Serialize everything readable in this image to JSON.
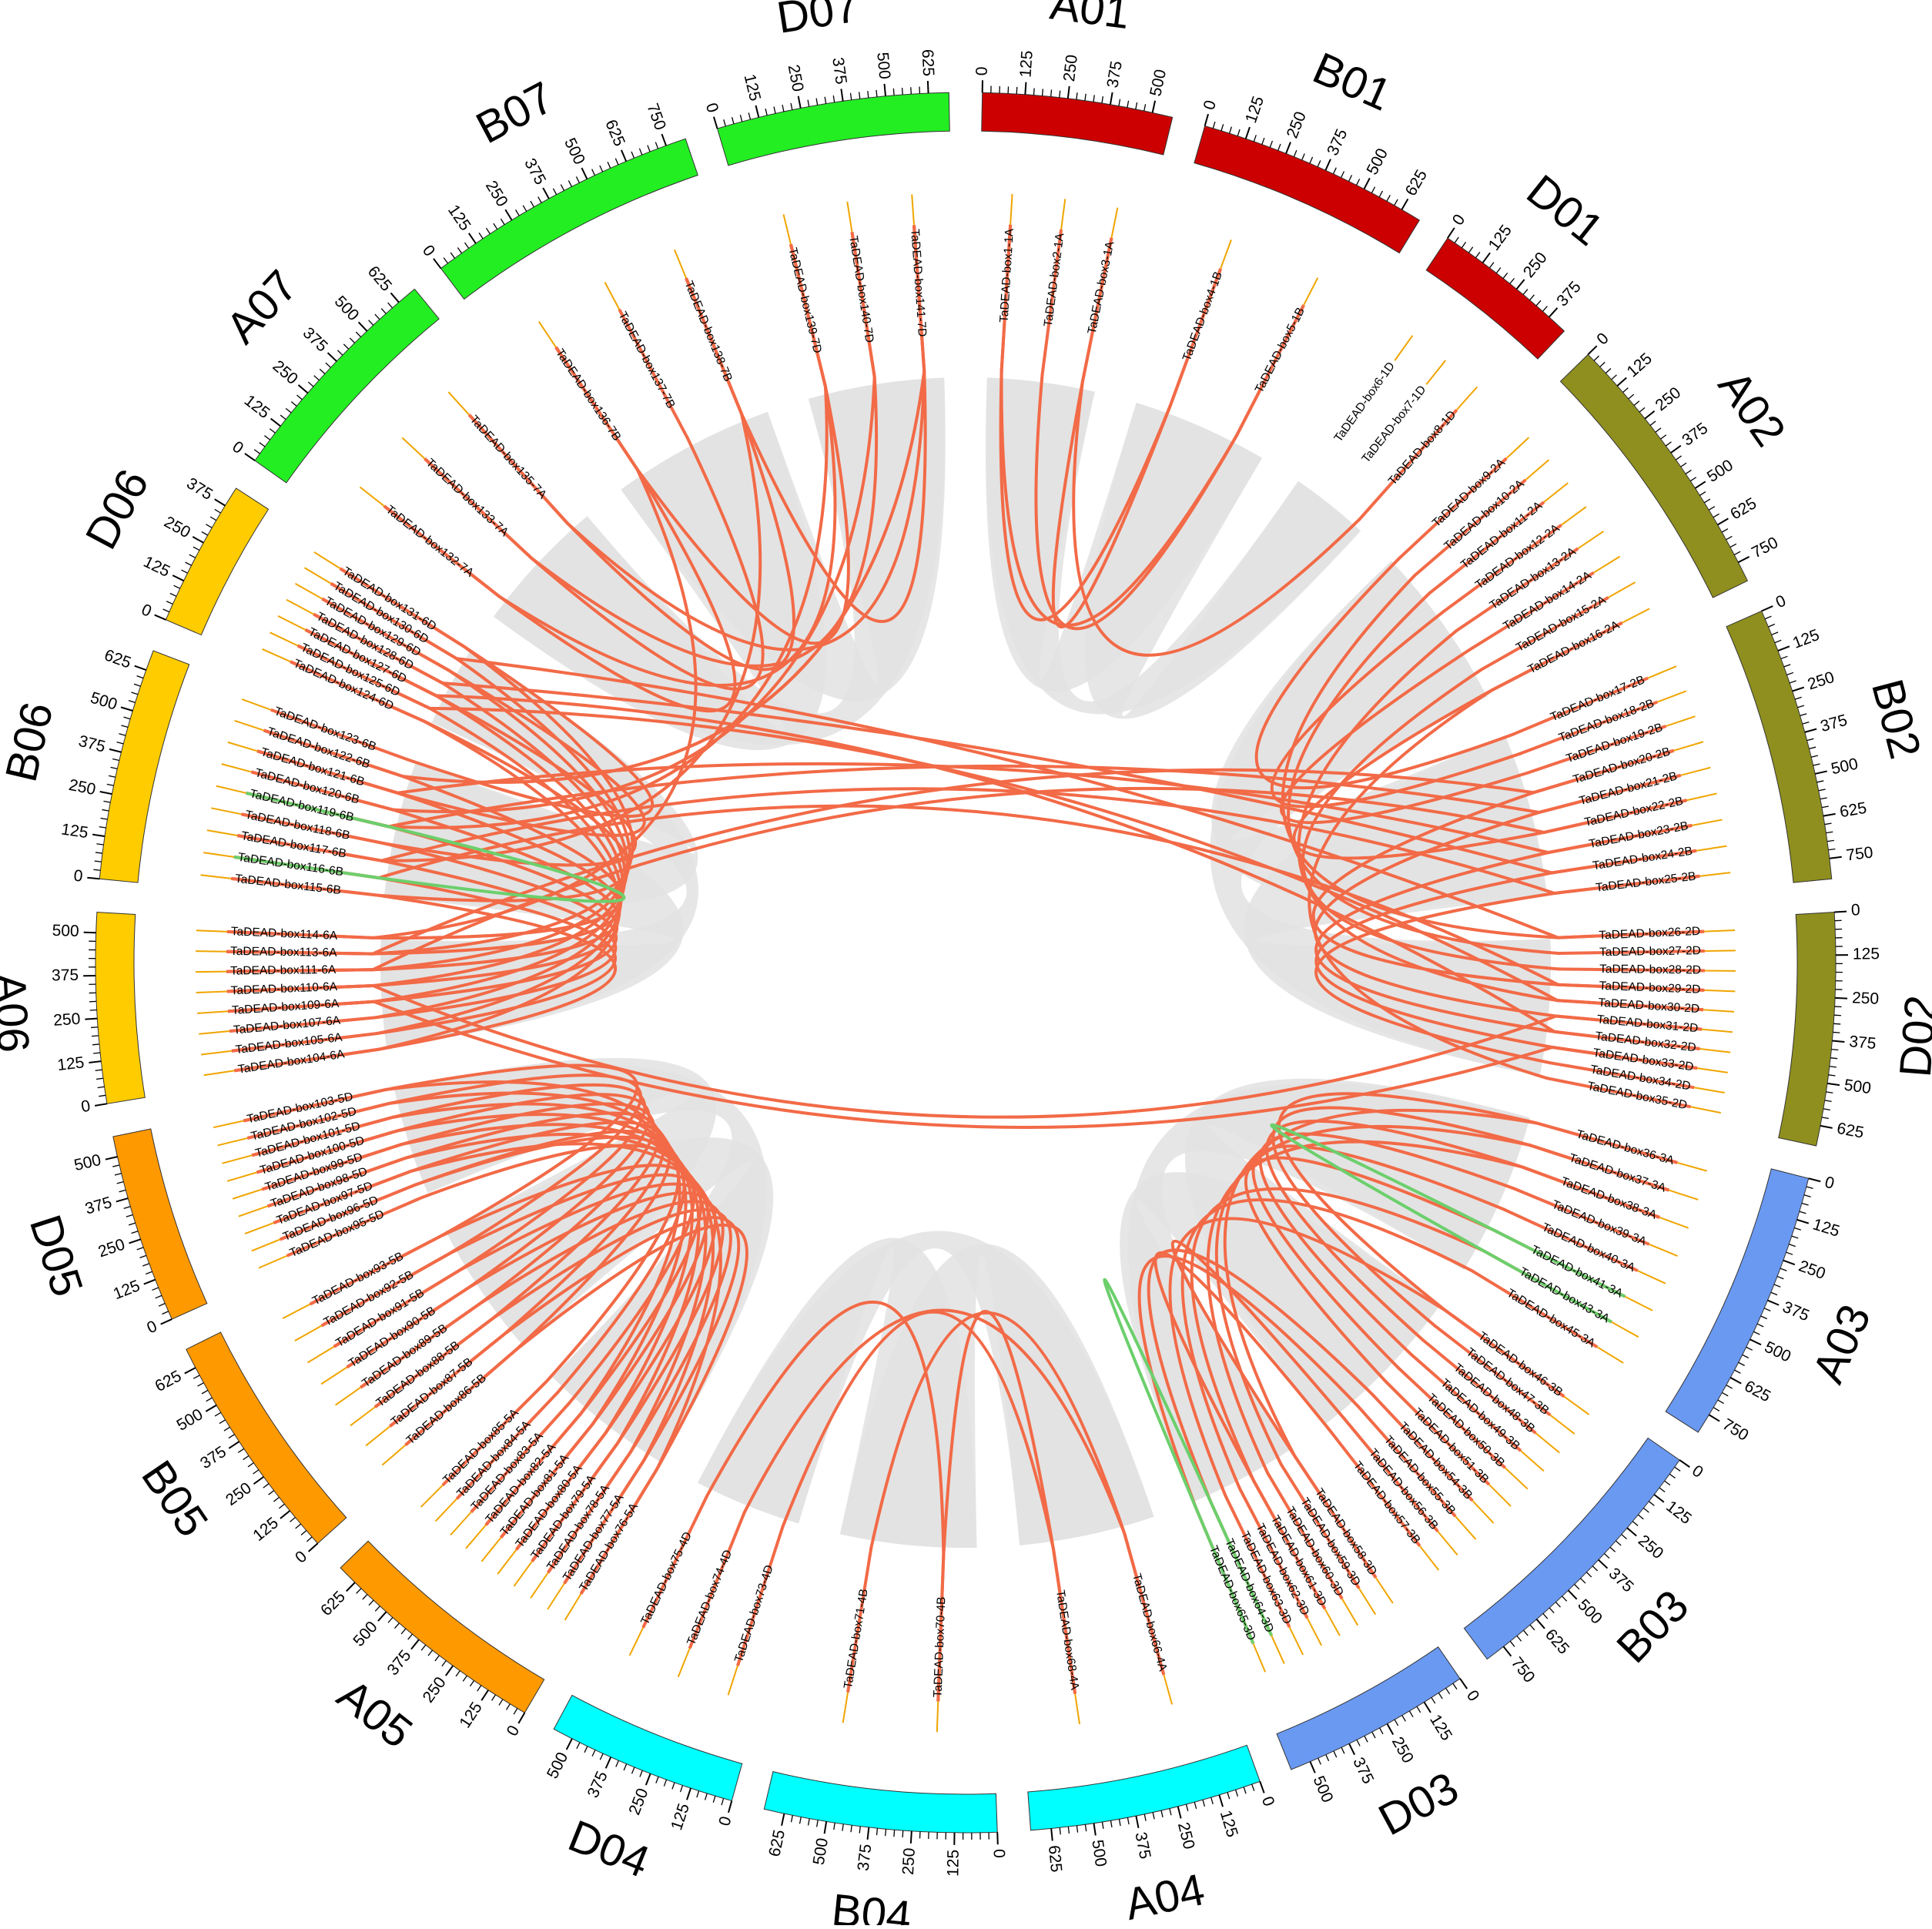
{
  "colors": {
    "red": "#cc0000",
    "olive": "#8f8f1f",
    "blue": "#6a99f2",
    "cyan": "#00ffff",
    "orange": "#ff9900",
    "gold": "#ffcc00",
    "green": "#22ee22",
    "link_segmental": "#f26a47",
    "link_tandem": "#6ccf6c",
    "band": "#e2e2e2",
    "gene_tick": "#f0a500"
  },
  "chromosomes": [
    {
      "name": "A01",
      "color": "red",
      "ticks": [
        "0",
        "125",
        "250",
        "375",
        "500"
      ]
    },
    {
      "name": "B01",
      "color": "red",
      "ticks": [
        "0",
        "125",
        "250",
        "375",
        "500",
        "625"
      ]
    },
    {
      "name": "D01",
      "color": "red",
      "ticks": [
        "0",
        "125",
        "250",
        "375"
      ]
    },
    {
      "name": "A02",
      "color": "olive",
      "ticks": [
        "0",
        "125",
        "250",
        "375",
        "500",
        "625",
        "750"
      ]
    },
    {
      "name": "B02",
      "color": "olive",
      "ticks": [
        "0",
        "125",
        "250",
        "375",
        "500",
        "625",
        "750"
      ]
    },
    {
      "name": "D02",
      "color": "olive",
      "ticks": [
        "0",
        "125",
        "250",
        "375",
        "500",
        "625"
      ]
    },
    {
      "name": "A03",
      "color": "blue",
      "ticks": [
        "0",
        "125",
        "250",
        "375",
        "500",
        "625",
        "750"
      ]
    },
    {
      "name": "B03",
      "color": "blue",
      "ticks": [
        "0",
        "125",
        "250",
        "375",
        "500",
        "625",
        "750"
      ]
    },
    {
      "name": "D03",
      "color": "blue",
      "ticks": [
        "0",
        "125",
        "250",
        "375",
        "500"
      ]
    },
    {
      "name": "A04",
      "color": "cyan",
      "ticks": [
        "0",
        "125",
        "250",
        "375",
        "500",
        "625"
      ]
    },
    {
      "name": "B04",
      "color": "cyan",
      "ticks": [
        "0",
        "125",
        "250",
        "375",
        "500",
        "625"
      ]
    },
    {
      "name": "D04",
      "color": "cyan",
      "ticks": [
        "0",
        "125",
        "250",
        "375",
        "500"
      ]
    },
    {
      "name": "A05",
      "color": "orange",
      "ticks": [
        "0",
        "125",
        "250",
        "375",
        "500",
        "625"
      ]
    },
    {
      "name": "B05",
      "color": "orange",
      "ticks": [
        "0",
        "125",
        "250",
        "375",
        "500",
        "625"
      ]
    },
    {
      "name": "D05",
      "color": "orange",
      "ticks": [
        "0",
        "125",
        "250",
        "375",
        "500"
      ]
    },
    {
      "name": "A06",
      "color": "gold",
      "ticks": [
        "0",
        "125",
        "250",
        "375",
        "500"
      ]
    },
    {
      "name": "B06",
      "color": "gold",
      "ticks": [
        "0",
        "125",
        "250",
        "375",
        "500",
        "625"
      ]
    },
    {
      "name": "D06",
      "color": "gold",
      "ticks": [
        "0",
        "125",
        "250",
        "375"
      ]
    },
    {
      "name": "A07",
      "color": "green",
      "ticks": [
        "0",
        "125",
        "250",
        "375",
        "500",
        "625"
      ]
    },
    {
      "name": "B07",
      "color": "green",
      "ticks": [
        "0",
        "125",
        "250",
        "375",
        "500",
        "625",
        "750"
      ]
    },
    {
      "name": "D07",
      "color": "green",
      "ticks": [
        "0",
        "125",
        "250",
        "375",
        "500",
        "625"
      ]
    }
  ],
  "genes": [
    "TaDEAD-box1-1A",
    "TaDEAD-box2-1A",
    "TaDEAD-box3-1A",
    "TaDEAD-box4-1B",
    "TaDEAD-box5-1B",
    "TaDEAD-box6-1D",
    "TaDEAD-box7-1D",
    "TaDEAD-box8-1D",
    "TaDEAD-box9-2A",
    "TaDEAD-box10-2A",
    "TaDEAD-box11-2A",
    "TaDEAD-box12-2A",
    "TaDEAD-box13-2A",
    "TaDEAD-box14-2A",
    "TaDEAD-box15-2A",
    "TaDEAD-box16-2A",
    "TaDEAD-box17-2B",
    "TaDEAD-box18-2B",
    "TaDEAD-box19-2B",
    "TaDEAD-box20-2B",
    "TaDEAD-box21-2B",
    "TaDEAD-box22-2B",
    "TaDEAD-box23-2B",
    "TaDEAD-box24-2B",
    "TaDEAD-box25-2B",
    "TaDEAD-box26-2D",
    "TaDEAD-box27-2D",
    "TaDEAD-box28-2D",
    "TaDEAD-box29-2D",
    "TaDEAD-box30-2D",
    "TaDEAD-box31-2D",
    "TaDEAD-box32-2D",
    "TaDEAD-box33-2D",
    "TaDEAD-box34-2D",
    "TaDEAD-box35-2D",
    "TaDEAD-box36-3A",
    "TaDEAD-box37-3A",
    "TaDEAD-box38-3A",
    "TaDEAD-box39-3A",
    "TaDEAD-box40-3A",
    "TaDEAD-box41-3A",
    "TaDEAD-box43-3A",
    "TaDEAD-box45-3A",
    "TaDEAD-box46-3B",
    "TaDEAD-box47-3B",
    "TaDEAD-box48-3B",
    "TaDEAD-box49-3B",
    "TaDEAD-box50-3B",
    "TaDEAD-box51-3B",
    "TaDEAD-box54-3B",
    "TaDEAD-box55-3B",
    "TaDEAD-box56-3B",
    "TaDEAD-box57-3B",
    "TaDEAD-box58-3D",
    "TaDEAD-box59-3D",
    "TaDEAD-box60-3D",
    "TaDEAD-box61-3D",
    "TaDEAD-box62-3D",
    "TaDEAD-box63-3D",
    "TaDEAD-box64-3D",
    "TaDEAD-box65-3D",
    "TaDEAD-box66-4A",
    "TaDEAD-box68-4A",
    "TaDEAD-box70-4B",
    "TaDEAD-box71-4B",
    "TaDEAD-box73-4D",
    "TaDEAD-box74-4D",
    "TaDEAD-box75-4D",
    "TaDEAD-box76-5A",
    "TaDEAD-box77-5A",
    "TaDEAD-box78-5A",
    "TaDEAD-box79-5A",
    "TaDEAD-box80-5A",
    "TaDEAD-box81-5A",
    "TaDEAD-box82-5A",
    "TaDEAD-box83-5A",
    "TaDEAD-box84-5A",
    "TaDEAD-box85-5A",
    "TaDEAD-box86-5B",
    "TaDEAD-box87-5B",
    "TaDEAD-box88-5B",
    "TaDEAD-box89-5B",
    "TaDEAD-box90-5B",
    "TaDEAD-box91-5B",
    "TaDEAD-box92-5B",
    "TaDEAD-box93-5B",
    "TaDEAD-box95-5D",
    "TaDEAD-box96-5D",
    "TaDEAD-box97-5D",
    "TaDEAD-box98-5D",
    "TaDEAD-box99-5D",
    "TaDEAD-box100-5D",
    "TaDEAD-box101-5D",
    "TaDEAD-box102-5D",
    "TaDEAD-box103-5D",
    "TaDEAD-box104-6A",
    "TaDEAD-box105-6A",
    "TaDEAD-box107-6A",
    "TaDEAD-box109-6A",
    "TaDEAD-box110-6A",
    "TaDEAD-box111-6A",
    "TaDEAD-box113-6A",
    "TaDEAD-box114-6A",
    "TaDEAD-box115-6B",
    "TaDEAD-box116-6B",
    "TaDEAD-box117-6B",
    "TaDEAD-box118-6B",
    "TaDEAD-box119-6B",
    "TaDEAD-box120-6B",
    "TaDEAD-box121-6B",
    "TaDEAD-box122-6B",
    "TaDEAD-box123-6B",
    "TaDEAD-box124-6D",
    "TaDEAD-box125-6D",
    "TaDEAD-box127-6D",
    "TaDEAD-box128-6D",
    "TaDEAD-box129-6D",
    "TaDEAD-box130-6D",
    "TaDEAD-box131-6D",
    "TaDEAD-box132-7A",
    "TaDEAD-box133-7A",
    "TaDEAD-box135-7A",
    "TaDEAD-box136-7B",
    "TaDEAD-box137-7B",
    "TaDEAD-box138-7B",
    "TaDEAD-box139-7D",
    "TaDEAD-box140-7D",
    "TaDEAD-box141-7D"
  ],
  "segmental_links": [
    [
      "TaDEAD-box1-1A",
      "TaDEAD-box4-1B"
    ],
    [
      "TaDEAD-box1-1A",
      "TaDEAD-box5-1B"
    ],
    [
      "TaDEAD-box3-1A",
      "TaDEAD-box4-1B"
    ],
    [
      "TaDEAD-box3-1A",
      "TaDEAD-box8-1D"
    ],
    [
      "TaDEAD-box2-1A",
      "TaDEAD-box5-1B"
    ],
    [
      "TaDEAD-box9-2A",
      "TaDEAD-box17-2B"
    ],
    [
      "TaDEAD-box10-2A",
      "TaDEAD-box26-2D"
    ],
    [
      "TaDEAD-box11-2A",
      "TaDEAD-box27-2D"
    ],
    [
      "TaDEAD-box12-2A",
      "TaDEAD-box18-2B"
    ],
    [
      "TaDEAD-box13-2A",
      "TaDEAD-box30-2D"
    ],
    [
      "TaDEAD-box14-2A",
      "TaDEAD-box19-2B"
    ],
    [
      "TaDEAD-box15-2A",
      "TaDEAD-box28-2D"
    ],
    [
      "TaDEAD-box16-2A",
      "TaDEAD-box22-2B"
    ],
    [
      "TaDEAD-box20-2B",
      "TaDEAD-box29-2D"
    ],
    [
      "TaDEAD-box21-2B",
      "TaDEAD-box31-2D"
    ],
    [
      "TaDEAD-box23-2B",
      "TaDEAD-box32-2D"
    ],
    [
      "TaDEAD-box24-2B",
      "TaDEAD-box33-2D"
    ],
    [
      "TaDEAD-box25-2B",
      "TaDEAD-box34-2D"
    ],
    [
      "TaDEAD-box16-2A",
      "TaDEAD-box35-2D"
    ],
    [
      "TaDEAD-box36-3A",
      "TaDEAD-box46-3B"
    ],
    [
      "TaDEAD-box37-3A",
      "TaDEAD-box47-3B"
    ],
    [
      "TaDEAD-box38-3A",
      "TaDEAD-box48-3B"
    ],
    [
      "TaDEAD-box39-3A",
      "TaDEAD-box49-3B"
    ],
    [
      "TaDEAD-box40-3A",
      "TaDEAD-box50-3B"
    ],
    [
      "TaDEAD-box41-3A",
      "TaDEAD-box51-3B"
    ],
    [
      "TaDEAD-box36-3A",
      "TaDEAD-box58-3D"
    ],
    [
      "TaDEAD-box37-3A",
      "TaDEAD-box59-3D"
    ],
    [
      "TaDEAD-box38-3A",
      "TaDEAD-box60-3D"
    ],
    [
      "TaDEAD-box43-3A",
      "TaDEAD-box61-3D"
    ],
    [
      "TaDEAD-box45-3A",
      "TaDEAD-box62-3D"
    ],
    [
      "TaDEAD-box46-3B",
      "TaDEAD-box63-3D"
    ],
    [
      "TaDEAD-box54-3B",
      "TaDEAD-box64-3D"
    ],
    [
      "TaDEAD-box55-3B",
      "TaDEAD-box65-3D"
    ],
    [
      "TaDEAD-box56-3B",
      "TaDEAD-box58-3D"
    ],
    [
      "TaDEAD-box57-3B",
      "TaDEAD-box61-3D"
    ],
    [
      "TaDEAD-box66-4A",
      "TaDEAD-box71-4B"
    ],
    [
      "TaDEAD-box66-4A",
      "TaDEAD-box74-4D"
    ],
    [
      "TaDEAD-box68-4A",
      "TaDEAD-box70-4B"
    ],
    [
      "TaDEAD-box68-4A",
      "TaDEAD-box73-4D"
    ],
    [
      "TaDEAD-box70-4B",
      "TaDEAD-box75-4D"
    ],
    [
      "TaDEAD-box76-5A",
      "TaDEAD-box86-5B"
    ],
    [
      "TaDEAD-box77-5A",
      "TaDEAD-box87-5B"
    ],
    [
      "TaDEAD-box78-5A",
      "TaDEAD-box88-5B"
    ],
    [
      "TaDEAD-box79-5A",
      "TaDEAD-box89-5B"
    ],
    [
      "TaDEAD-box80-5A",
      "TaDEAD-box90-5B"
    ],
    [
      "TaDEAD-box81-5A",
      "TaDEAD-box91-5B"
    ],
    [
      "TaDEAD-box82-5A",
      "TaDEAD-box92-5B"
    ],
    [
      "TaDEAD-box83-5A",
      "TaDEAD-box93-5B"
    ],
    [
      "TaDEAD-box84-5A",
      "TaDEAD-box95-5D"
    ],
    [
      "TaDEAD-box85-5A",
      "TaDEAD-box96-5D"
    ],
    [
      "TaDEAD-box76-5A",
      "TaDEAD-box97-5D"
    ],
    [
      "TaDEAD-box77-5A",
      "TaDEAD-box98-5D"
    ],
    [
      "TaDEAD-box78-5A",
      "TaDEAD-box99-5D"
    ],
    [
      "TaDEAD-box79-5A",
      "TaDEAD-box100-5D"
    ],
    [
      "TaDEAD-box80-5A",
      "TaDEAD-box101-5D"
    ],
    [
      "TaDEAD-box81-5A",
      "TaDEAD-box102-5D"
    ],
    [
      "TaDEAD-box82-5A",
      "TaDEAD-box103-5D"
    ],
    [
      "TaDEAD-box86-5B",
      "TaDEAD-box96-5D"
    ],
    [
      "TaDEAD-box87-5B",
      "TaDEAD-box97-5D"
    ],
    [
      "TaDEAD-box88-5B",
      "TaDEAD-box98-5D"
    ],
    [
      "TaDEAD-box89-5B",
      "TaDEAD-box99-5D"
    ],
    [
      "TaDEAD-box90-5B",
      "TaDEAD-box100-5D"
    ],
    [
      "TaDEAD-box91-5B",
      "TaDEAD-box101-5D"
    ],
    [
      "TaDEAD-box92-5B",
      "TaDEAD-box102-5D"
    ],
    [
      "TaDEAD-box93-5B",
      "TaDEAD-box103-5D"
    ],
    [
      "TaDEAD-box104-6A",
      "TaDEAD-box115-6B"
    ],
    [
      "TaDEAD-box105-6A",
      "TaDEAD-box116-6B"
    ],
    [
      "TaDEAD-box107-6A",
      "TaDEAD-box117-6B"
    ],
    [
      "TaDEAD-box109-6A",
      "TaDEAD-box118-6B"
    ],
    [
      "TaDEAD-box110-6A",
      "TaDEAD-box119-6B"
    ],
    [
      "TaDEAD-box111-6A",
      "TaDEAD-box120-6B"
    ],
    [
      "TaDEAD-box113-6A",
      "TaDEAD-box121-6B"
    ],
    [
      "TaDEAD-box114-6A",
      "TaDEAD-box122-6B"
    ],
    [
      "TaDEAD-box104-6A",
      "TaDEAD-box124-6D"
    ],
    [
      "TaDEAD-box105-6A",
      "TaDEAD-box125-6D"
    ],
    [
      "TaDEAD-box107-6A",
      "TaDEAD-box127-6D"
    ],
    [
      "TaDEAD-box109-6A",
      "TaDEAD-box128-6D"
    ],
    [
      "TaDEAD-box110-6A",
      "TaDEAD-box129-6D"
    ],
    [
      "TaDEAD-box111-6A",
      "TaDEAD-box130-6D"
    ],
    [
      "TaDEAD-box113-6A",
      "TaDEAD-box131-6D"
    ],
    [
      "TaDEAD-box115-6B",
      "TaDEAD-box124-6D"
    ],
    [
      "TaDEAD-box118-6B",
      "TaDEAD-box127-6D"
    ],
    [
      "TaDEAD-box121-6B",
      "TaDEAD-box129-6D"
    ],
    [
      "TaDEAD-box123-6B",
      "TaDEAD-box131-6D"
    ],
    [
      "TaDEAD-box132-7A",
      "TaDEAD-box136-7B"
    ],
    [
      "TaDEAD-box133-7A",
      "TaDEAD-box137-7B"
    ],
    [
      "TaDEAD-box135-7A",
      "TaDEAD-box138-7B"
    ],
    [
      "TaDEAD-box132-7A",
      "TaDEAD-box139-7D"
    ],
    [
      "TaDEAD-box133-7A",
      "TaDEAD-box140-7D"
    ],
    [
      "TaDEAD-box135-7A",
      "TaDEAD-box141-7D"
    ],
    [
      "TaDEAD-box136-7B",
      "TaDEAD-box139-7D"
    ],
    [
      "TaDEAD-box138-7B",
      "TaDEAD-box141-7D"
    ],
    [
      "TaDEAD-box119-6B",
      "TaDEAD-box139-7D"
    ],
    [
      "TaDEAD-box120-6B",
      "TaDEAD-box140-7D"
    ],
    [
      "TaDEAD-box122-6B",
      "TaDEAD-box141-7D"
    ],
    [
      "TaDEAD-box117-6B",
      "TaDEAD-box138-7B"
    ],
    [
      "TaDEAD-box114-6A",
      "TaDEAD-box136-7B"
    ],
    [
      "TaDEAD-box128-6D",
      "TaDEAD-box24-2B"
    ],
    [
      "TaDEAD-box127-6D",
      "TaDEAD-box32-2D"
    ],
    [
      "TaDEAD-box121-6B",
      "TaDEAD-box23-2B"
    ],
    [
      "TaDEAD-box119-6B",
      "TaDEAD-box21-2B"
    ],
    [
      "TaDEAD-box117-6B",
      "TaDEAD-box25-2B"
    ],
    [
      "TaDEAD-box116-6B",
      "TaDEAD-box29-2D"
    ],
    [
      "TaDEAD-box111-6A",
      "TaDEAD-box22-2B"
    ],
    [
      "TaDEAD-box110-6A",
      "TaDEAD-box31-2D"
    ],
    [
      "TaDEAD-box109-6A",
      "TaDEAD-box33-2D"
    ],
    [
      "TaDEAD-box113-6A",
      "TaDEAD-box20-2B"
    ],
    [
      "TaDEAD-box130-6D",
      "TaDEAD-box26-2D"
    ],
    [
      "TaDEAD-box125-6D",
      "TaDEAD-box30-2D"
    ]
  ],
  "tandem_links": [
    [
      "TaDEAD-box116-6B",
      "TaDEAD-box119-6B"
    ],
    [
      "TaDEAD-box41-3A",
      "TaDEAD-box43-3A"
    ],
    [
      "TaDEAD-box64-3D",
      "TaDEAD-box65-3D"
    ]
  ]
}
